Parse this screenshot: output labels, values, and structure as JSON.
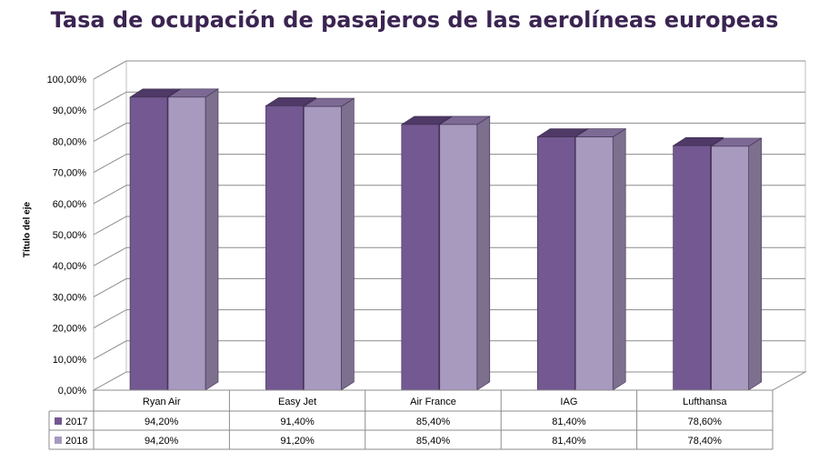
{
  "chart_data": {
    "type": "bar",
    "title": "Tasa de ocupación de pasajeros de las aerolíneas europeas",
    "ylabel": "Título del eje",
    "categories": [
      "Ryan Air",
      "Easy Jet",
      "Air France",
      "IAG",
      "Lufthansa"
    ],
    "series": [
      {
        "name": "2017",
        "values": [
          94.2,
          91.4,
          85.4,
          81.4,
          78.6
        ],
        "labels": [
          "94,20%",
          "91,40%",
          "85,40%",
          "81,40%",
          "78,60%"
        ],
        "color": "#735891"
      },
      {
        "name": "2018",
        "values": [
          94.2,
          91.2,
          85.4,
          81.4,
          78.4
        ],
        "labels": [
          "94,20%",
          "91,20%",
          "85,40%",
          "81,40%",
          "78,40%"
        ],
        "color": "#a899bf"
      }
    ],
    "ylim": [
      0,
      100
    ],
    "yticks": [
      "0,00%",
      "10,00%",
      "20,00%",
      "30,00%",
      "40,00%",
      "50,00%",
      "60,00%",
      "70,00%",
      "80,00%",
      "90,00%",
      "100,00%"
    ],
    "grid": true,
    "legend": "data-table",
    "bar_style": "3d"
  }
}
